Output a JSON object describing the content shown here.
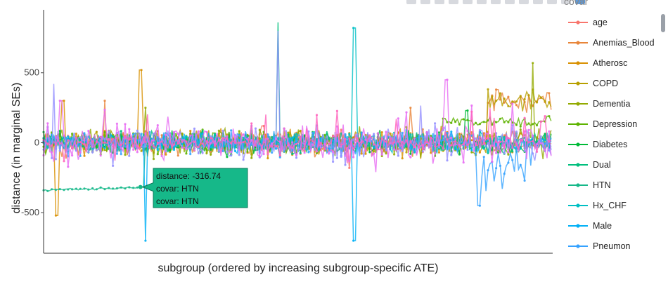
{
  "modebar": {
    "icons": [
      "camera-icon",
      "zoom-icon",
      "pan-icon",
      "box-select-icon",
      "lasso-icon",
      "zoom-in-icon",
      "zoom-out-icon",
      "autoscale-icon",
      "home-icon",
      "spike-icon",
      "hover-closest-icon",
      "hover-compare-icon",
      "plotly-logo-icon"
    ]
  },
  "legend": {
    "title": "covar"
  },
  "tooltip": {
    "line1": "distance: -316.74",
    "line2": "covar: HTN",
    "line3": "covar: HTN",
    "color": "#16b889"
  },
  "chart_data": {
    "type": "line",
    "xlabel": "subgroup (ordered by increasing subgroup-specific ATE)",
    "ylabel": "distance (in marginal SEs)",
    "ylim": [
      -790,
      950
    ],
    "yticks": [
      500,
      0,
      -500
    ],
    "xticks_shown": false,
    "grid": false,
    "legend_position": "right",
    "n_subgroups": 1000,
    "series": [
      {
        "name": "age",
        "color": "#f8766d",
        "noise": 60,
        "spikes": [
          [
            430,
            120
          ],
          [
            600,
            -180
          ]
        ]
      },
      {
        "name": "Anemias_Blood",
        "color": "#e8853a",
        "noise": 70,
        "spikes": [
          [
            120,
            300
          ],
          [
            720,
            250
          ],
          [
            890,
            380
          ]
        ]
      },
      {
        "name": "Atherosc",
        "color": "#d89000",
        "noise": 80,
        "spikes": [
          [
            25,
            -520
          ],
          [
            38,
            300
          ],
          [
            190,
            520
          ]
        ]
      },
      {
        "name": "COPD",
        "color": "#b79f00",
        "noise": 70,
        "spikes": [
          [
            880,
            330
          ],
          [
            960,
            380
          ]
        ]
      },
      {
        "name": "Dementia",
        "color": "#93aa00",
        "noise": 80,
        "spikes": [
          [
            960,
            570
          ],
          [
            200,
            250
          ]
        ]
      },
      {
        "name": "Depression",
        "color": "#5eb300",
        "noise": 65,
        "spikes": [
          [
            990,
            190
          ]
        ]
      },
      {
        "name": "Diabetes",
        "color": "#00ba38",
        "noise": 70,
        "spikes": [
          [
            830,
            230
          ]
        ]
      },
      {
        "name": "Dual",
        "color": "#00bf7d",
        "noise": 60,
        "spikes": [
          [
            460,
            860
          ]
        ]
      },
      {
        "name": "HTN",
        "color": "#16b889",
        "noise": 45,
        "spikes": [
          [
            0,
            -340
          ],
          [
            100,
            -337
          ],
          [
            190,
            -317
          ]
        ]
      },
      {
        "name": "Hx_CHF",
        "color": "#00bfc4",
        "noise": 55,
        "spikes": [
          [
            610,
            820
          ]
        ]
      },
      {
        "name": "Male",
        "color": "#00b0f6",
        "noise": 55,
        "spikes": [
          [
            200,
            -700
          ],
          [
            610,
            -700
          ]
        ]
      },
      {
        "name": "Pneumon",
        "color": "#35a2ff",
        "noise": 75,
        "spikes": [
          [
            855,
            -450
          ],
          [
            900,
            -330
          ]
        ]
      },
      {
        "name": "",
        "color": "#9590ff",
        "noise": 95,
        "spikes": [
          [
            460,
            800
          ],
          [
            20,
            420
          ]
        ]
      },
      {
        "name": "",
        "color": "#e76bf3",
        "noise": 110,
        "spikes": [
          [
            790,
            450
          ],
          [
            35,
            300
          ]
        ]
      },
      {
        "name": "",
        "color": "#ff62bc",
        "noise": 40,
        "spikes": []
      }
    ]
  }
}
